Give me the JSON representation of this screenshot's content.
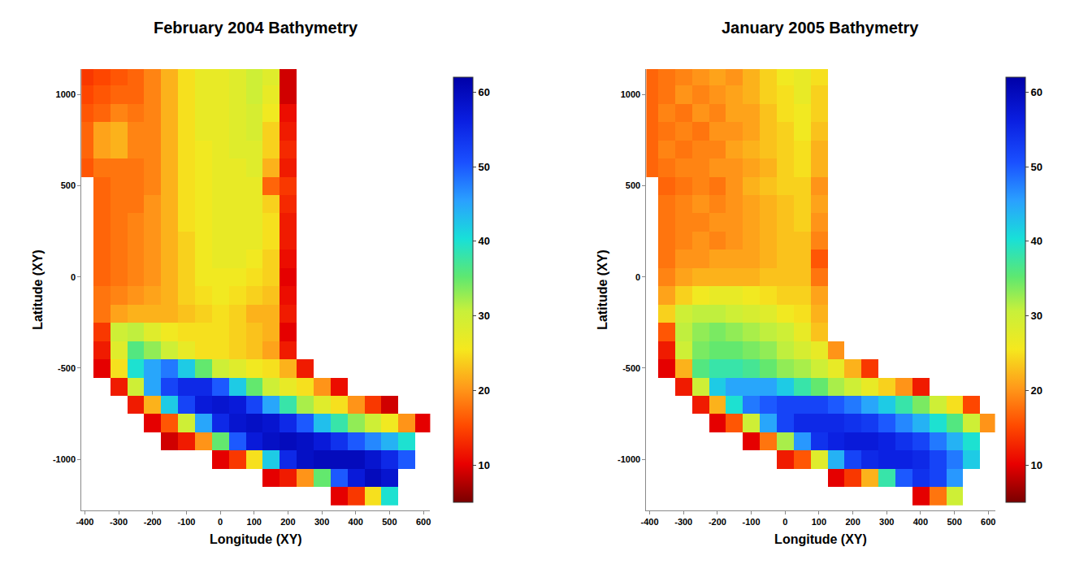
{
  "chart_data": [
    {
      "type": "heatmap",
      "title": "February 2004 Bathymetry",
      "xlabel": "Longitude (XY)",
      "ylabel": "Latitude (XY)",
      "x": [
        -400,
        -350,
        -300,
        -250,
        -200,
        -150,
        -100,
        -50,
        0,
        50,
        100,
        150,
        200,
        250,
        300,
        350,
        400,
        450,
        500,
        550,
        600
      ],
      "y": [
        1100,
        1000,
        900,
        800,
        700,
        600,
        500,
        400,
        300,
        200,
        100,
        0,
        -100,
        -200,
        -300,
        -400,
        -500,
        -600,
        -700,
        -800,
        -900,
        -1000,
        -1100,
        -1200
      ],
      "z": [
        [
          14,
          15,
          16,
          17,
          19,
          22,
          25,
          27,
          27,
          28,
          30,
          28,
          9,
          null,
          null,
          null,
          null,
          null,
          null,
          null,
          null
        ],
        [
          15,
          16,
          17,
          17,
          19,
          22,
          25,
          27,
          27,
          28,
          30,
          27,
          9,
          null,
          null,
          null,
          null,
          null,
          null,
          null,
          null
        ],
        [
          16,
          17,
          19,
          18,
          19,
          22,
          25,
          27,
          27,
          28,
          29,
          26,
          11,
          null,
          null,
          null,
          null,
          null,
          null,
          null,
          null
        ],
        [
          17,
          21,
          22,
          19,
          19,
          22,
          25,
          27,
          27,
          28,
          29,
          24,
          12,
          null,
          null,
          null,
          null,
          null,
          null,
          null,
          null
        ],
        [
          17,
          21,
          22,
          19,
          19,
          22,
          25,
          26,
          27,
          28,
          28,
          24,
          13,
          null,
          null,
          null,
          null,
          null,
          null,
          null,
          null
        ],
        [
          16,
          18,
          18,
          18,
          19,
          22,
          25,
          26,
          27,
          27,
          28,
          22,
          12,
          null,
          null,
          null,
          null,
          null,
          null,
          null,
          null
        ],
        [
          null,
          17,
          18,
          18,
          19,
          22,
          25,
          26,
          27,
          27,
          27,
          17,
          14,
          null,
          null,
          null,
          null,
          null,
          null,
          null,
          null
        ],
        [
          null,
          17,
          18,
          18,
          20,
          22,
          25,
          26,
          27,
          27,
          27,
          24,
          13,
          null,
          null,
          null,
          null,
          null,
          null,
          null,
          null
        ],
        [
          null,
          17,
          18,
          19,
          20,
          22,
          25,
          26,
          27,
          27,
          27,
          25,
          12,
          null,
          null,
          null,
          null,
          null,
          null,
          null,
          null
        ],
        [
          null,
          17,
          18,
          19,
          20,
          22,
          24,
          26,
          27,
          27,
          27,
          25,
          12,
          null,
          null,
          null,
          null,
          null,
          null,
          null,
          null
        ],
        [
          null,
          17,
          18,
          19,
          20,
          22,
          24,
          26,
          27,
          27,
          26,
          24,
          11,
          null,
          null,
          null,
          null,
          null,
          null,
          null,
          null
        ],
        [
          null,
          17,
          18,
          19,
          20,
          22,
          24,
          26,
          26,
          26,
          25,
          24,
          10,
          null,
          null,
          null,
          null,
          null,
          null,
          null,
          null
        ],
        [
          null,
          18,
          19,
          20,
          21,
          22,
          24,
          25,
          26,
          25,
          24,
          23,
          11,
          null,
          null,
          null,
          null,
          null,
          null,
          null,
          null
        ],
        [
          null,
          18,
          21,
          22,
          22,
          22,
          23,
          24,
          25,
          24,
          22,
          22,
          12,
          null,
          null,
          null,
          null,
          null,
          null,
          null,
          null
        ],
        [
          null,
          14,
          30,
          31,
          28,
          26,
          25,
          25,
          25,
          24,
          23,
          22,
          10,
          null,
          null,
          null,
          null,
          null,
          null,
          null,
          null
        ],
        [
          null,
          12,
          28,
          36,
          33,
          30,
          27,
          25,
          25,
          24,
          23,
          21,
          12,
          null,
          null,
          null,
          null,
          null,
          null,
          null,
          null
        ],
        [
          null,
          10,
          25,
          40,
          45,
          48,
          42,
          35,
          30,
          28,
          26,
          25,
          22,
          12,
          null,
          null,
          null,
          null,
          null,
          null,
          null
        ],
        [
          null,
          null,
          12,
          30,
          45,
          52,
          55,
          55,
          50,
          42,
          35,
          30,
          27,
          25,
          20,
          11,
          null,
          null,
          null,
          null,
          null
        ],
        [
          null,
          null,
          null,
          12,
          22,
          42,
          52,
          57,
          58,
          57,
          52,
          45,
          38,
          32,
          28,
          25,
          20,
          14,
          9,
          null,
          null
        ],
        [
          null,
          null,
          null,
          null,
          10,
          16,
          30,
          45,
          55,
          58,
          59,
          58,
          55,
          50,
          43,
          38,
          33,
          30,
          26,
          20,
          10
        ],
        [
          null,
          null,
          null,
          null,
          null,
          9,
          12,
          20,
          35,
          50,
          57,
          59,
          60,
          59,
          57,
          54,
          50,
          47,
          44,
          40,
          null
        ],
        [
          null,
          null,
          null,
          null,
          null,
          null,
          null,
          null,
          10,
          14,
          25,
          42,
          55,
          59,
          60,
          60,
          60,
          58,
          55,
          50,
          null
        ],
        [
          null,
          null,
          null,
          null,
          null,
          null,
          null,
          null,
          null,
          null,
          null,
          10,
          12,
          20,
          35,
          50,
          57,
          60,
          58,
          null,
          null
        ],
        [
          null,
          null,
          null,
          null,
          null,
          null,
          null,
          null,
          null,
          null,
          null,
          null,
          null,
          null,
          null,
          10,
          14,
          25,
          40,
          null,
          null
        ]
      ],
      "xlim": [
        -410,
        620
      ],
      "ylim": [
        -1280,
        1140
      ],
      "xticks": [
        -400,
        -300,
        -200,
        -100,
        0,
        100,
        200,
        300,
        400,
        500,
        600
      ],
      "yticks": [
        -1000,
        -500,
        0,
        500,
        1000
      ],
      "zlim": [
        5,
        62
      ],
      "zticks": [
        10,
        20,
        30,
        40,
        50,
        60
      ]
    },
    {
      "type": "heatmap",
      "title": "January 2005 Bathymetry",
      "xlabel": "Longitude (XY)",
      "ylabel": "Latitude (XY)",
      "x": [
        -400,
        -350,
        -300,
        -250,
        -200,
        -150,
        -100,
        -50,
        0,
        50,
        100,
        150,
        200,
        250,
        300,
        350,
        400,
        450,
        500,
        550,
        600
      ],
      "y": [
        1100,
        1000,
        900,
        800,
        700,
        600,
        500,
        400,
        300,
        200,
        100,
        0,
        -100,
        -200,
        -300,
        -400,
        -500,
        -600,
        -700,
        -800,
        -900,
        -1000,
        -1100,
        -1200
      ],
      "z": [
        [
          17,
          18,
          19,
          20,
          21,
          20,
          22,
          24,
          26,
          27,
          25,
          null,
          null,
          null,
          null,
          null,
          null,
          null,
          null,
          null,
          null
        ],
        [
          17,
          18,
          20,
          19,
          20,
          21,
          22,
          24,
          25,
          27,
          24,
          null,
          null,
          null,
          null,
          null,
          null,
          null,
          null,
          null,
          null
        ],
        [
          17,
          19,
          18,
          20,
          19,
          21,
          21,
          23,
          25,
          26,
          24,
          null,
          null,
          null,
          null,
          null,
          null,
          null,
          null,
          null,
          null
        ],
        [
          17,
          18,
          19,
          18,
          20,
          20,
          21,
          23,
          24,
          26,
          23,
          null,
          null,
          null,
          null,
          null,
          null,
          null,
          null,
          null,
          null
        ],
        [
          17,
          19,
          18,
          19,
          19,
          21,
          22,
          23,
          24,
          25,
          22,
          null,
          null,
          null,
          null,
          null,
          null,
          null,
          null,
          null,
          null
        ],
        [
          17,
          18,
          19,
          19,
          20,
          20,
          21,
          22,
          24,
          25,
          22,
          null,
          null,
          null,
          null,
          null,
          null,
          null,
          null,
          null,
          null
        ],
        [
          null,
          17,
          18,
          19,
          18,
          20,
          22,
          23,
          24,
          24,
          20,
          null,
          null,
          null,
          null,
          null,
          null,
          null,
          null,
          null,
          null
        ],
        [
          null,
          18,
          19,
          20,
          19,
          20,
          21,
          22,
          23,
          24,
          21,
          null,
          null,
          null,
          null,
          null,
          null,
          null,
          null,
          null,
          null
        ],
        [
          null,
          18,
          19,
          19,
          20,
          20,
          21,
          22,
          23,
          24,
          20,
          null,
          null,
          null,
          null,
          null,
          null,
          null,
          null,
          null,
          null
        ],
        [
          null,
          18,
          19,
          20,
          19,
          20,
          21,
          22,
          23,
          23,
          19,
          null,
          null,
          null,
          null,
          null,
          null,
          null,
          null,
          null,
          null
        ],
        [
          null,
          18,
          20,
          20,
          21,
          21,
          21,
          22,
          23,
          23,
          16,
          null,
          null,
          null,
          null,
          null,
          null,
          null,
          null,
          null,
          null
        ],
        [
          null,
          19,
          21,
          22,
          22,
          22,
          22,
          23,
          23,
          23,
          18,
          null,
          null,
          null,
          null,
          null,
          null,
          null,
          null,
          null,
          null
        ],
        [
          null,
          21,
          24,
          26,
          27,
          27,
          26,
          25,
          24,
          24,
          21,
          null,
          null,
          null,
          null,
          null,
          null,
          null,
          null,
          null,
          null
        ],
        [
          null,
          24,
          30,
          31,
          31,
          30,
          29,
          28,
          26,
          25,
          22,
          null,
          null,
          null,
          null,
          null,
          null,
          null,
          null,
          null,
          null
        ],
        [
          null,
          16,
          31,
          33,
          34,
          33,
          32,
          31,
          30,
          27,
          23,
          null,
          null,
          null,
          null,
          null,
          null,
          null,
          null,
          null,
          null
        ],
        [
          null,
          12,
          30,
          34,
          35,
          35,
          34,
          33,
          31,
          29,
          27,
          20,
          null,
          null,
          null,
          null,
          null,
          null,
          null,
          null,
          null
        ],
        [
          null,
          10,
          22,
          36,
          38,
          38,
          37,
          35,
          33,
          32,
          30,
          27,
          22,
          14,
          null,
          null,
          null,
          null,
          null,
          null,
          null
        ],
        [
          null,
          null,
          12,
          30,
          42,
          45,
          45,
          45,
          42,
          38,
          35,
          32,
          30,
          27,
          24,
          20,
          12,
          null,
          null,
          null,
          null
        ],
        [
          null,
          null,
          null,
          12,
          22,
          40,
          48,
          50,
          52,
          52,
          52,
          50,
          48,
          45,
          42,
          38,
          34,
          30,
          25,
          15,
          null
        ],
        [
          null,
          null,
          null,
          null,
          10,
          16,
          30,
          45,
          52,
          55,
          55,
          55,
          54,
          53,
          50,
          47,
          44,
          40,
          36,
          30,
          20
        ],
        [
          null,
          null,
          null,
          null,
          null,
          null,
          10,
          18,
          32,
          46,
          54,
          56,
          57,
          57,
          56,
          54,
          52,
          48,
          44,
          40,
          null
        ],
        [
          null,
          null,
          null,
          null,
          null,
          null,
          null,
          null,
          12,
          16,
          28,
          44,
          52,
          55,
          56,
          56,
          55,
          52,
          48,
          42,
          null
        ],
        [
          null,
          null,
          null,
          null,
          null,
          null,
          null,
          null,
          null,
          null,
          null,
          10,
          14,
          22,
          38,
          50,
          54,
          52,
          46,
          null,
          null
        ],
        [
          null,
          null,
          null,
          null,
          null,
          null,
          null,
          null,
          null,
          null,
          null,
          null,
          null,
          null,
          null,
          null,
          10,
          18,
          30,
          null,
          null
        ]
      ],
      "xlim": [
        -410,
        620
      ],
      "ylim": [
        -1280,
        1140
      ],
      "xticks": [
        -400,
        -300,
        -200,
        -100,
        0,
        100,
        200,
        300,
        400,
        500,
        600
      ],
      "yticks": [
        -1000,
        -500,
        0,
        500,
        1000
      ],
      "zlim": [
        5,
        62
      ],
      "zticks": [
        10,
        20,
        30,
        40,
        50,
        60
      ]
    }
  ]
}
